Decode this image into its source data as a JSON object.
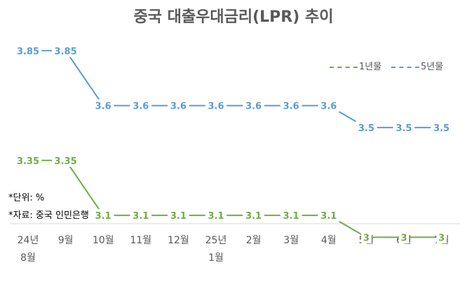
{
  "chart_data": {
    "type": "line",
    "title": "중국 대출우대금리(LPR) 추이",
    "categories": [
      [
        "24년",
        "8월"
      ],
      [
        "9월"
      ],
      [
        "10월"
      ],
      [
        "11월"
      ],
      [
        "12월"
      ],
      [
        "25년",
        "1월"
      ],
      [
        "2월"
      ],
      [
        "3월"
      ],
      [
        "4월"
      ],
      [
        "5월"
      ],
      [
        "6월"
      ],
      [
        "7월"
      ]
    ],
    "series": [
      {
        "name": "1년물",
        "color": "#70ad47",
        "values": [
          3.35,
          3.35,
          3.1,
          3.1,
          3.1,
          3.1,
          3.1,
          3.1,
          3.1,
          3,
          3,
          3
        ],
        "labels": [
          "3.35",
          "3.35",
          "3.1",
          "3.1",
          "3.1",
          "3.1",
          "3.1",
          "3.1",
          "3.1",
          "3",
          "3",
          "3"
        ]
      },
      {
        "name": "5년물",
        "color": "#5b9bd5",
        "values": [
          3.85,
          3.85,
          3.6,
          3.6,
          3.6,
          3.6,
          3.6,
          3.6,
          3.6,
          3.5,
          3.5,
          3.5
        ],
        "labels": [
          "3.85",
          "3.85",
          "3.6",
          "3.6",
          "3.6",
          "3.6",
          "3.6",
          "3.6",
          "3.6",
          "3.5",
          "3.5",
          "3.5"
        ]
      }
    ],
    "ylim": [
      2.95,
      3.95
    ],
    "grid": false,
    "legend_position": "top-right",
    "notes": [
      "*단위: %",
      "*자료: 중국 인민은행"
    ]
  }
}
